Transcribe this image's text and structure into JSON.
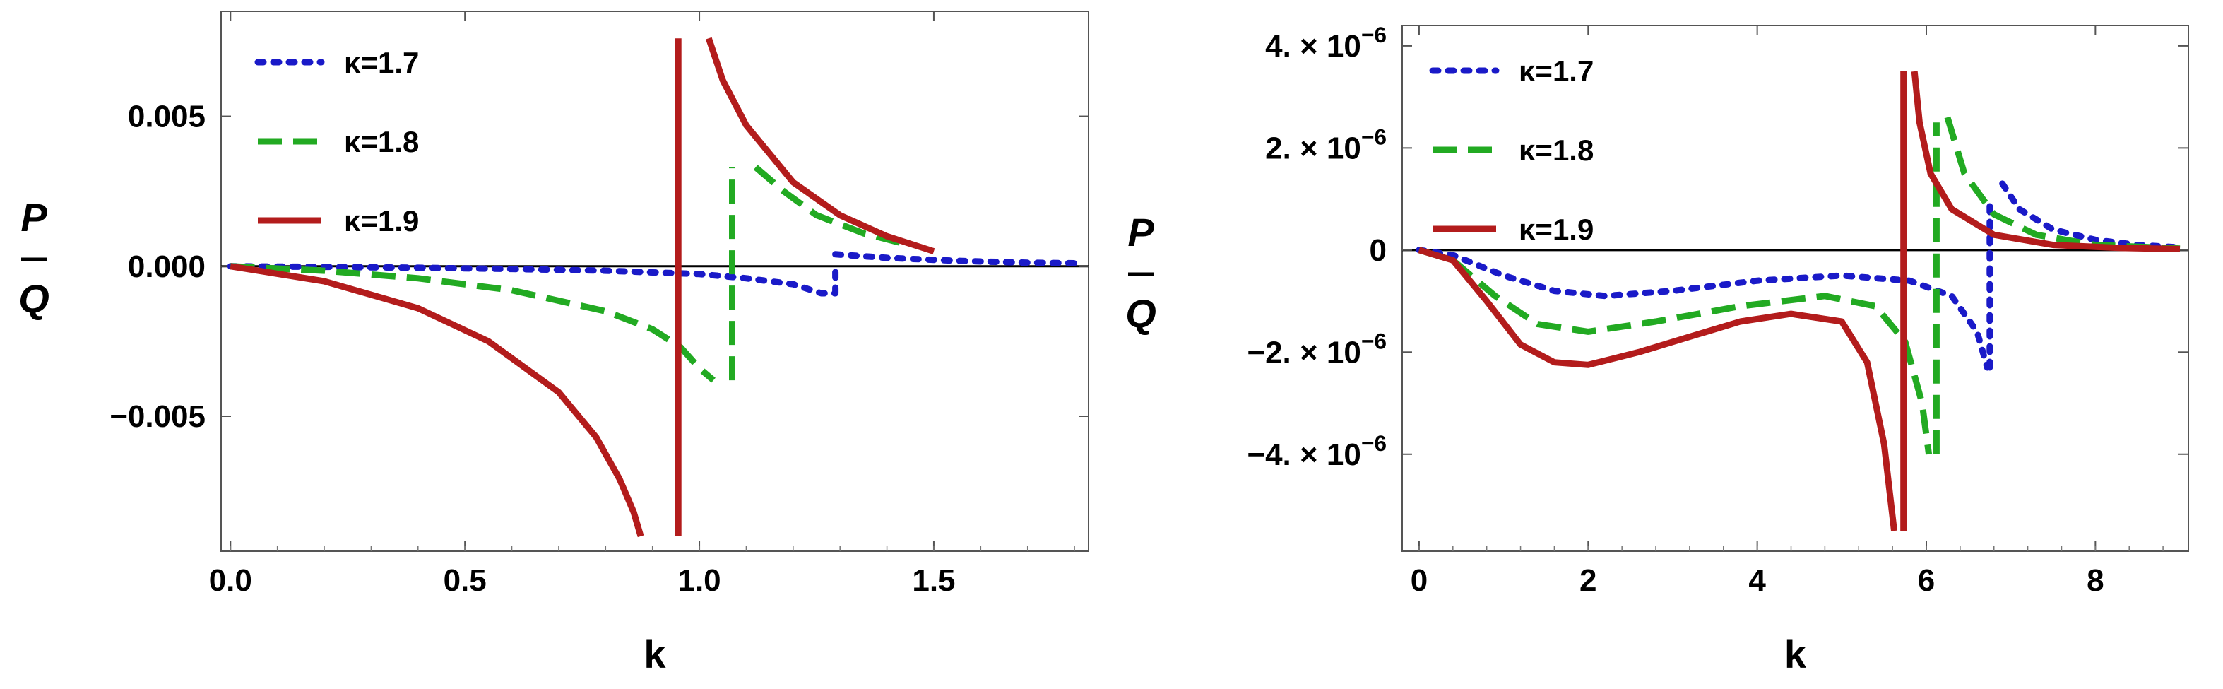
{
  "chart_data": [
    {
      "type": "line",
      "xlabel": "k",
      "ylabel_top": "P",
      "ylabel_bottom": "Q",
      "xlim": [
        -0.02,
        1.83
      ],
      "ylim": [
        -0.0095,
        0.0085
      ],
      "xticks": [
        0.0,
        0.5,
        1.0,
        1.5
      ],
      "xtick_labels": [
        "0.0",
        "0.5",
        "1.0",
        "1.5"
      ],
      "yticks": [
        0.005,
        0.0,
        -0.005
      ],
      "ytick_labels": [
        "0.005",
        "0.000",
        "−0.005"
      ],
      "legend_position": "top-left",
      "series": [
        {
          "name": "κ=1.7",
          "color": "#1a1ac8",
          "style": "dotted",
          "segments": [
            {
              "x": [
                0,
                0.2,
                0.4,
                0.6,
                0.8,
                1.0,
                1.1,
                1.2,
                1.26,
                1.29
              ],
              "y": [
                0,
                -2e-05,
                -5e-05,
                -9e-05,
                -0.00015,
                -0.00026,
                -0.0004,
                -0.0006,
                -0.0009,
                -0.0009
              ]
            },
            {
              "x": [
                1.29,
                1.29
              ],
              "y": [
                -0.0009,
                0.0001
              ]
            },
            {
              "x": [
                1.29,
                1.4,
                1.55,
                1.7,
                1.8
              ],
              "y": [
                0.0004,
                0.00028,
                0.00018,
                0.00012,
                0.0001
              ]
            }
          ]
        },
        {
          "name": "κ=1.8",
          "color": "#22aa22",
          "style": "dashed",
          "segments": [
            {
              "x": [
                0,
                0.2,
                0.4,
                0.6,
                0.8,
                0.9,
                0.96,
                1.0,
                1.03
              ],
              "y": [
                0,
                -0.00015,
                -0.0004,
                -0.0008,
                -0.0015,
                -0.0021,
                -0.0027,
                -0.0034,
                -0.0038
              ]
            },
            {
              "x": [
                1.07,
                1.07
              ],
              "y": [
                -0.0038,
                0.0033
              ]
            },
            {
              "x": [
                1.12,
                1.18,
                1.25,
                1.35,
                1.45
              ],
              "y": [
                0.0033,
                0.0025,
                0.0017,
                0.0011,
                0.0007
              ]
            }
          ]
        },
        {
          "name": "κ=1.9",
          "color": "#b31c1c",
          "style": "solid",
          "segments": [
            {
              "x": [
                0,
                0.2,
                0.4,
                0.55,
                0.7,
                0.78,
                0.83,
                0.86,
                0.875
              ],
              "y": [
                0,
                -0.0005,
                -0.0014,
                -0.0025,
                -0.0042,
                -0.0057,
                -0.0071,
                -0.0082,
                -0.009
              ]
            },
            {
              "x": [
                0.955,
                0.955
              ],
              "y": [
                -0.009,
                0.0076
              ]
            },
            {
              "x": [
                1.02,
                1.05,
                1.1,
                1.2,
                1.3,
                1.4,
                1.5
              ],
              "y": [
                0.0076,
                0.0062,
                0.0047,
                0.0028,
                0.0017,
                0.001,
                0.0005
              ]
            }
          ]
        }
      ]
    },
    {
      "type": "line",
      "xlabel": "k",
      "ylabel_top": "P",
      "ylabel_bottom": "Q",
      "xlim": [
        -0.2,
        9.1
      ],
      "ylim": [
        -5.9e-06,
        4.4e-06
      ],
      "xticks": [
        0,
        2,
        4,
        6,
        8
      ],
      "xtick_labels": [
        "0",
        "2",
        "4",
        "6",
        "8"
      ],
      "yticks": [
        4e-06,
        2e-06,
        0,
        -2e-06,
        -4e-06
      ],
      "ytick_labels": [
        {
          "mantissa": "4.",
          "exponent": "−6"
        },
        {
          "mantissa": "2.",
          "exponent": "−6"
        },
        {
          "mantissa": "0",
          "exponent": ""
        },
        {
          "mantissa": "−2.",
          "exponent": "−6"
        },
        {
          "mantissa": "−4.",
          "exponent": "−6"
        }
      ],
      "tick_times_symbol": "×",
      "tick_base": "10",
      "legend_position": "top-left",
      "series": [
        {
          "name": "κ=1.7",
          "color": "#1a1ac8",
          "style": "dotted",
          "segments": [
            {
              "x": [
                0,
                0.4,
                1.0,
                1.6,
                2.2,
                3.0,
                4.0,
                5.0,
                5.8,
                6.3,
                6.6,
                6.72
              ],
              "y": [
                0,
                -1e-07,
                -5e-07,
                -8e-07,
                -9e-07,
                -8e-07,
                -6e-07,
                -5e-07,
                -6e-07,
                -9e-07,
                -1.6e-06,
                -2.3e-06
              ]
            },
            {
              "x": [
                6.75,
                6.75
              ],
              "y": [
                -2.3e-06,
                1e-06
              ]
            },
            {
              "x": [
                6.9,
                7.1,
                7.5,
                8.0,
                8.5,
                9.0
              ],
              "y": [
                1.3e-06,
                8e-07,
                4e-07,
                2e-07,
                1e-07,
                5e-08
              ]
            }
          ]
        },
        {
          "name": "κ=1.8",
          "color": "#22aa22",
          "style": "dashed",
          "segments": [
            {
              "x": [
                0,
                0.4,
                0.9,
                1.4,
                2.0,
                2.8,
                3.8,
                4.8,
                5.4,
                5.75,
                5.95,
                6.03
              ],
              "y": [
                0,
                -2e-07,
                -9e-07,
                -1.45e-06,
                -1.6e-06,
                -1.4e-06,
                -1.1e-06,
                -9e-07,
                -1.1e-06,
                -1.8e-06,
                -3e-06,
                -4e-06
              ]
            },
            {
              "x": [
                6.12,
                6.12
              ],
              "y": [
                -4e-06,
                2.5e-06
              ]
            },
            {
              "x": [
                6.25,
                6.45,
                6.8,
                7.3,
                8.0,
                9.0
              ],
              "y": [
                2.6e-06,
                1.5e-06,
                7e-07,
                3e-07,
                1e-07,
                3e-08
              ]
            }
          ]
        },
        {
          "name": "κ=1.9",
          "color": "#b31c1c",
          "style": "solid",
          "segments": [
            {
              "x": [
                0,
                0.4,
                0.8,
                1.2,
                1.6,
                2.0,
                2.6,
                3.2,
                3.8,
                4.4,
                5.0,
                5.3,
                5.5,
                5.62
              ],
              "y": [
                0,
                -2e-07,
                -1e-06,
                -1.85e-06,
                -2.2e-06,
                -2.25e-06,
                -2e-06,
                -1.7e-06,
                -1.4e-06,
                -1.25e-06,
                -1.4e-06,
                -2.2e-06,
                -3.8e-06,
                -5.5e-06
              ]
            },
            {
              "x": [
                5.73,
                5.73
              ],
              "y": [
                -5.5e-06,
                3.5e-06
              ]
            },
            {
              "x": [
                5.86,
                5.92,
                6.05,
                6.3,
                6.8,
                7.5,
                8.3,
                9.0
              ],
              "y": [
                3.5e-06,
                2.5e-06,
                1.5e-06,
                8e-07,
                3e-07,
                1e-07,
                4e-08,
                2e-08
              ]
            }
          ]
        }
      ]
    }
  ]
}
